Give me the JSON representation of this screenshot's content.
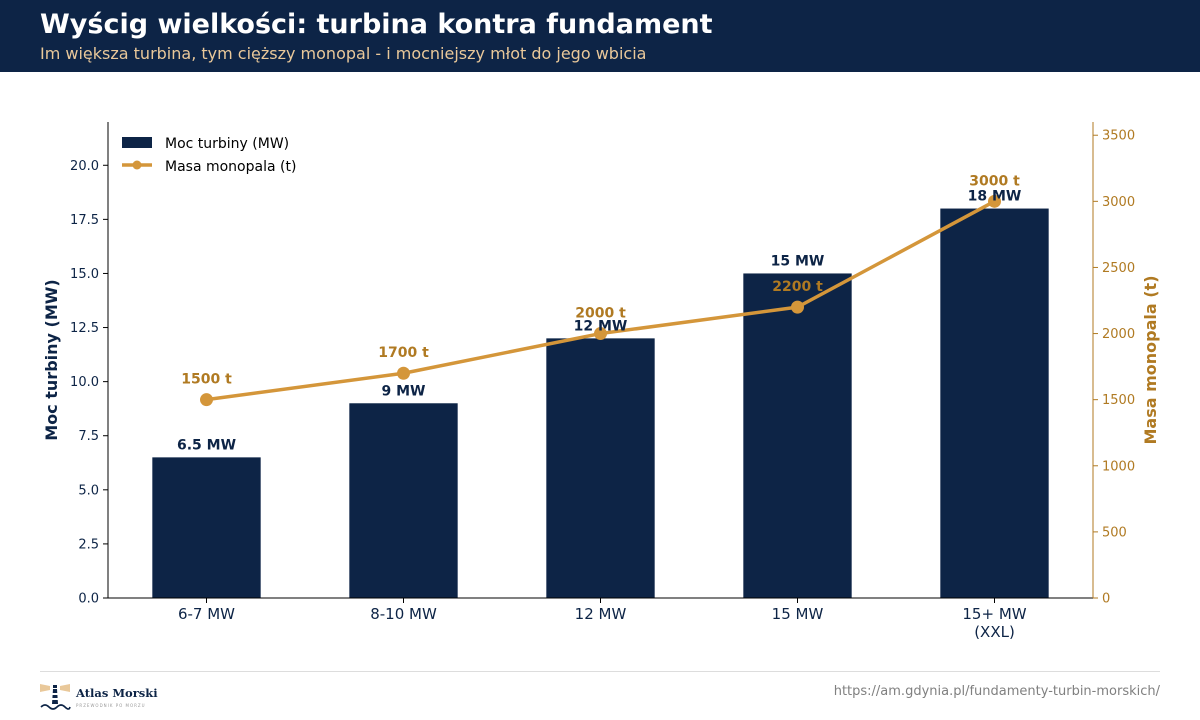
{
  "header": {
    "title": "Wyścig wielkości: turbina kontra fundament",
    "subtitle": "Im większa turbina, tym cięższy monopal - i mocniejszy młot do jego wbicia"
  },
  "colors": {
    "header_bg": "#0d2446",
    "bar": "#0d2446",
    "line": "#d4963a",
    "right_axis": "#b07a22",
    "subtitle": "#e9c89a"
  },
  "chart_data": {
    "type": "bar",
    "categories": [
      "6-7 MW",
      "8-10 MW",
      "12 MW",
      "15 MW",
      "15+ MW\n(XXL)"
    ],
    "series": [
      {
        "name": "Moc turbiny (MW)",
        "type": "bar",
        "axis": "left",
        "values": [
          6.5,
          9,
          12,
          15,
          18
        ],
        "data_labels": [
          "6.5 MW",
          "9 MW",
          "12 MW",
          "15 MW",
          "18 MW"
        ]
      },
      {
        "name": "Masa monopala (t)",
        "type": "line",
        "axis": "right",
        "values": [
          1500,
          1700,
          2000,
          2200,
          3000
        ],
        "data_labels": [
          "1500 t",
          "1700 t",
          "2000 t",
          "2200 t",
          "3000 t"
        ]
      }
    ],
    "ylabel": "Moc turbiny (MW)",
    "ylabel_right": "Masa monopala (t)",
    "ylim": [
      0,
      22
    ],
    "yticks": [
      0,
      2.5,
      5,
      7.5,
      10,
      12.5,
      15,
      17.5,
      20
    ],
    "ytick_labels": [
      "0.0",
      "2.5",
      "5.0",
      "7.5",
      "10.0",
      "12.5",
      "15.0",
      "17.5",
      "20.0"
    ],
    "ylim_right": [
      0,
      3600
    ],
    "yticks_right": [
      0,
      500,
      1000,
      1500,
      2000,
      2500,
      3000,
      3500
    ],
    "ytick_labels_right": [
      "0",
      "500",
      "1000",
      "1500",
      "2000",
      "2500",
      "3000",
      "3500"
    ],
    "legend": "top-left",
    "grid": false
  },
  "footer": {
    "logo_name": "Atlas Morski",
    "logo_tagline": "PRZEWODNIK PO MORZU",
    "source_url": "https://am.gdynia.pl/fundamenty-turbin-morskich/"
  }
}
